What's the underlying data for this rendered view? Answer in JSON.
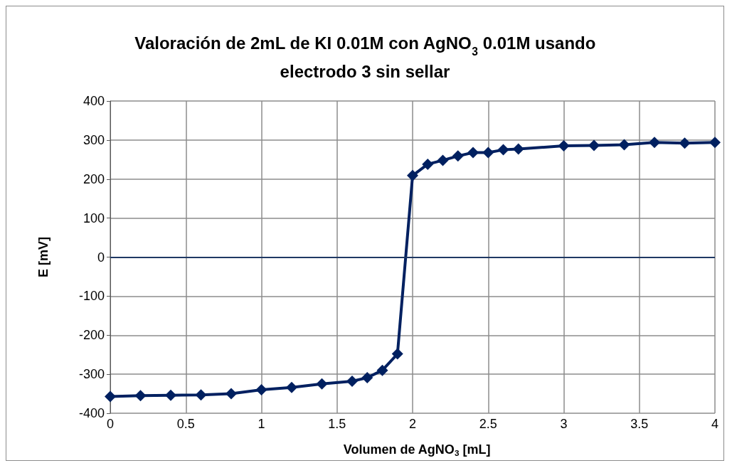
{
  "chart_data": {
    "type": "line",
    "title": "Valoración de 2mL de KI 0.01M con AgNO$_{3}$ 0.01M usando electrodo 3 sin sellar",
    "xlabel": "Volumen de AgNO$_{3}$ [mL]",
    "ylabel": "E [mV]",
    "x": [
      0,
      0.2,
      0.4,
      0.6,
      0.8,
      1.0,
      1.2,
      1.4,
      1.6,
      1.7,
      1.8,
      1.9,
      2.0,
      2.1,
      2.2,
      2.3,
      2.4,
      2.5,
      2.6,
      2.7,
      3.0,
      3.2,
      3.4,
      3.6,
      3.8,
      4.0
    ],
    "series": [
      {
        "color": "#002060",
        "values": [
          -357,
          -355,
          -354,
          -353,
          -350,
          -340,
          -334,
          -325,
          -318,
          -309,
          -290,
          -248,
          209,
          238,
          248,
          259,
          268,
          268,
          275,
          277,
          285,
          286,
          288,
          294,
          292,
          294
        ]
      }
    ],
    "xlim": [
      0,
      4
    ],
    "xticks": [
      0,
      0.5,
      1,
      1.5,
      2,
      2.5,
      3,
      3.5,
      4
    ],
    "ylim": [
      -400,
      400
    ],
    "yticks": [
      -400,
      -300,
      -200,
      -100,
      0,
      100,
      200,
      300,
      400
    ],
    "ref_lines": [
      {
        "axis": "y",
        "value": 0,
        "color": "#1f3864"
      }
    ],
    "grid": true,
    "marker": "diamond",
    "line_style": "solid"
  }
}
